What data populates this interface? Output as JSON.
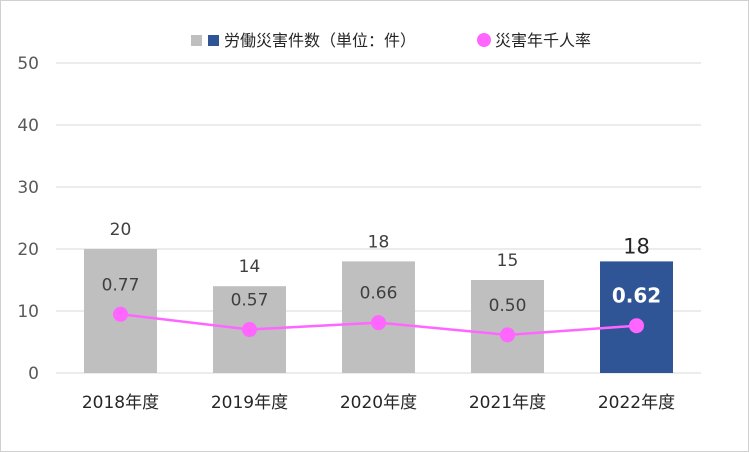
{
  "chart_data": {
    "type": "bar",
    "categories": [
      "2018年度",
      "2019年度",
      "2020年度",
      "2021年度",
      "2022年度"
    ],
    "series": [
      {
        "name": "労働災害件数（単位：件）",
        "type": "bar",
        "values": [
          20,
          14,
          18,
          15,
          18
        ],
        "colors": [
          "#bfbfbf",
          "#bfbfbf",
          "#bfbfbf",
          "#bfbfbf",
          "#2f5597"
        ]
      },
      {
        "name": "災害年千人率",
        "type": "line",
        "values": [
          0.77,
          0.57,
          0.66,
          0.5,
          0.62
        ],
        "value_labels": [
          "0.77",
          "0.57",
          "0.66",
          "0.50",
          "0.62"
        ],
        "color": "#ff66ff"
      }
    ],
    "ylim": [
      0,
      50
    ],
    "yticks": [
      0,
      10,
      20,
      30,
      40,
      50
    ],
    "grid": true,
    "legend_position": "top",
    "highlight_index": 4
  }
}
